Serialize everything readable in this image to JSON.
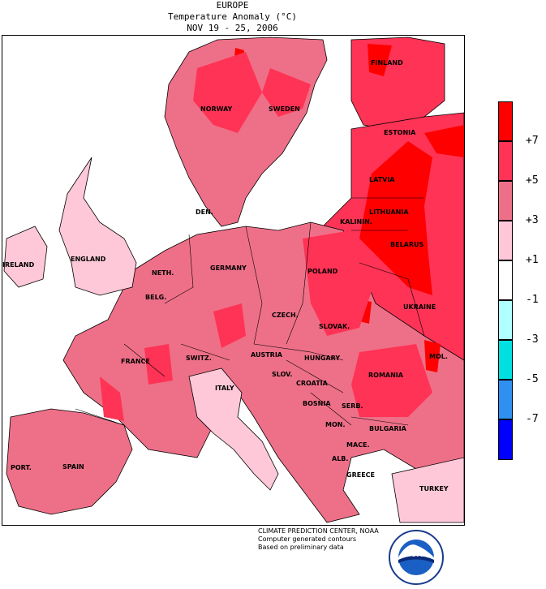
{
  "header": {
    "region": "EUROPE",
    "quantity": "Temperature Anomaly (°C)",
    "period": "NOV 19 - 25, 2006"
  },
  "labels": {
    "finland": "FINLAND",
    "norway": "NORWAY",
    "sweden": "SWEDEN",
    "estonia": "ESTONIA",
    "latvia": "LATVIA",
    "lithuania": "LITHUANIA",
    "kaliningrad": "KALININ.",
    "belarus": "BELARUS",
    "den": "DEN.",
    "ireland": "IRELAND",
    "england": "ENGLAND",
    "neth": "NETH.",
    "germany": "GERMANY",
    "poland": "POLAND",
    "belg": "BELG.",
    "czech": "CZECH.",
    "ukraine": "UKRAINE",
    "slovak": "SLOVAK.",
    "austria": "AUSTRIA",
    "hungary": "HUNGARY",
    "mol": "MOL.",
    "france": "FRANCE",
    "switz": "SWITZ.",
    "romania": "ROMANIA",
    "sloven": "SLOV.",
    "croatia": "CROATIA",
    "italy": "ITALY",
    "bosnia": "BOSNIA",
    "serb": "SERB.",
    "bulgaria": "BULGARIA",
    "mon": "MON.",
    "mace": "MACE.",
    "port": "PORT.",
    "spain": "SPAIN",
    "alb": "ALB.",
    "greece": "GREECE",
    "turkey": "TURKEY"
  },
  "legend": {
    "ticks": [
      "+7",
      "+5",
      "+3",
      "+1",
      "-1",
      "-3",
      "-5",
      "-7"
    ],
    "colors": [
      "#ff0000",
      "#ff3355",
      "#ee7088",
      "#ffc8d8",
      "#ffffff",
      "#b0ffff",
      "#00e0e0",
      "#3090f0",
      "#0000ff"
    ]
  },
  "footer": {
    "line1": "CLIMATE PREDICTION CENTER, NOAA",
    "line2": "Computer generated contours",
    "line3": "Based on preliminary data"
  },
  "logo": {
    "text": "NOAA",
    "icon": "noaa-logo"
  },
  "palette": {
    "sea": "#ffffff",
    "anom_7": "#ff0000",
    "anom_5": "#ff3355",
    "anom_3": "#ee7088",
    "anom_1": "#ffc8d8"
  }
}
